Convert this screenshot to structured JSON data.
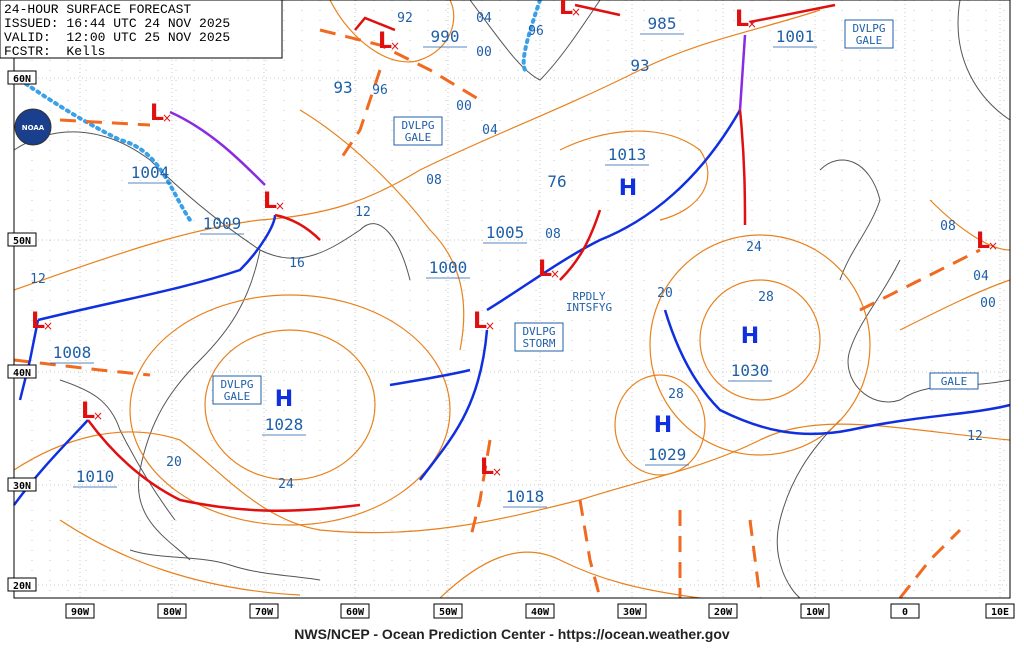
{
  "header": {
    "title": "24-HOUR SURFACE FORECAST",
    "issued": "ISSUED: 16:44 UTC 24 NOV 2025",
    "valid": "VALID:  12:00 UTC 25 NOV 2025",
    "forecaster": "FCSTR:  Kells"
  },
  "logo": "NOAA",
  "latitudes": [
    "60N",
    "50N",
    "40N",
    "30N",
    "20N"
  ],
  "longitudes": [
    "90W",
    "80W",
    "70W",
    "60W",
    "50W",
    "40W",
    "30W",
    "20W",
    "10W",
    "0",
    "10E"
  ],
  "centers": [
    {
      "symbol": "H",
      "pressure": "1028"
    },
    {
      "symbol": "H",
      "pressure": "1030"
    },
    {
      "symbol": "H",
      "pressure": "1029"
    },
    {
      "symbol": "H",
      "pressure": "1013"
    },
    {
      "symbol": "L",
      "pressure": "1004"
    },
    {
      "symbol": "L",
      "pressure": "1009"
    },
    {
      "symbol": "L",
      "pressure": "1008"
    },
    {
      "symbol": "L",
      "pressure": "1010"
    },
    {
      "symbol": "L",
      "pressure": "1000"
    },
    {
      "symbol": "L",
      "pressure": "1005"
    },
    {
      "symbol": "L",
      "pressure": "1018"
    },
    {
      "symbol": "L",
      "pressure": "990"
    },
    {
      "symbol": "L",
      "pressure": "985"
    },
    {
      "symbol": "L",
      "pressure": "1001"
    },
    {
      "symbol": "L"
    }
  ],
  "center_labels": [
    "93",
    "93",
    "76"
  ],
  "isobar_labels": [
    "92",
    "04",
    "00",
    "96",
    "00",
    "04",
    "08",
    "12",
    "16",
    "12",
    "20",
    "24",
    "08",
    "20",
    "28",
    "28",
    "24",
    "08",
    "04",
    "00",
    "12",
    "96"
  ],
  "warnings": [
    [
      "DVLPG",
      "GALE"
    ],
    [
      "DVLPG",
      "GALE"
    ],
    [
      "DVLPG",
      "GALE"
    ],
    [
      "DVLPG",
      "STORM"
    ],
    [
      "GALE"
    ]
  ],
  "remark": [
    "RPDLY",
    "INTSFYG"
  ],
  "footer": "NWS/NCEP - Ocean Prediction Center - https://ocean.weather.gov"
}
